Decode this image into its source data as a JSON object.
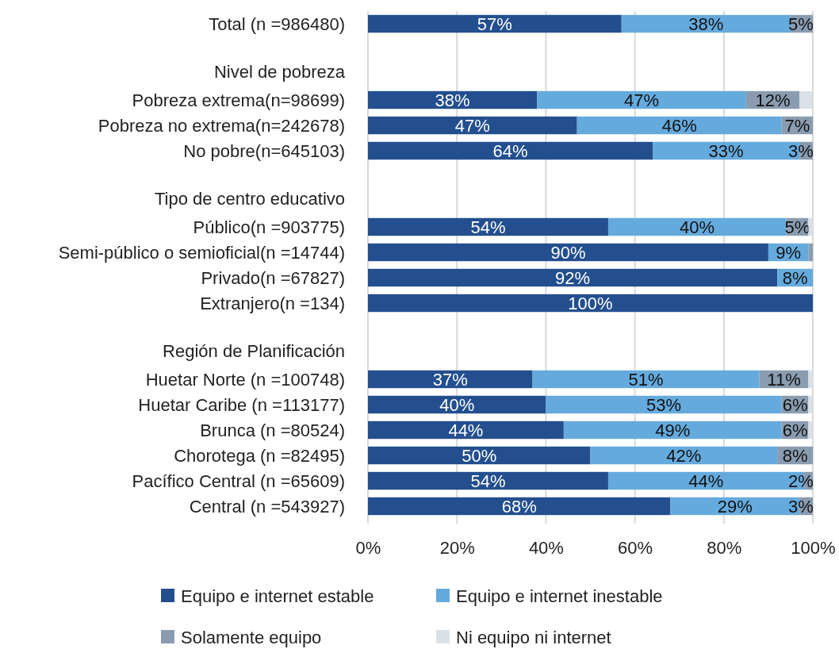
{
  "chart_data": {
    "type": "bar",
    "orientation": "horizontal",
    "stacked": true,
    "categories": [
      "Total (n =986480)",
      null,
      "Nivel de pobreza",
      "Pobreza extrema(n=98699)",
      "Pobreza no extrema(n=242678)",
      "No pobre(n=645103)",
      null,
      "Tipo de centro educativo",
      "Público(n =903775)",
      "Semi-público o semioficial(n =14744)",
      "Privado(n =67827)",
      "Extranjero(n =134)",
      null,
      "Región de Planificación",
      "Huetar Norte (n =100748)",
      "Huetar Caribe (n =113177)",
      "Brunca (n =80524)",
      "Chorotega (n =82495)",
      "Pacífico Central (n =65609)",
      "Central (n =543927)"
    ],
    "series": [
      {
        "name": "Equipo e internet estable",
        "color": "#234f8f",
        "values": [
          57,
          null,
          null,
          38,
          47,
          64,
          null,
          null,
          54,
          90,
          92,
          100,
          null,
          null,
          37,
          40,
          44,
          50,
          54,
          68
        ],
        "value_labels": [
          "57%",
          null,
          null,
          "38%",
          "47%",
          "64%",
          null,
          null,
          "54%",
          "90%",
          "92%",
          "100%",
          null,
          null,
          "37%",
          "40%",
          "44%",
          "50%",
          "54%",
          "68%"
        ]
      },
      {
        "name": "Equipo e internet inestable",
        "color": "#65aadd",
        "values": [
          38,
          null,
          null,
          47,
          46,
          33,
          null,
          null,
          40,
          9,
          8,
          null,
          null,
          null,
          51,
          53,
          49,
          42,
          44,
          29
        ],
        "value_labels": [
          "38%",
          null,
          null,
          "47%",
          "46%",
          "33%",
          null,
          null,
          "40%",
          "9%",
          "8%",
          null,
          null,
          null,
          "51%",
          "53%",
          "49%",
          "42%",
          "44%",
          "29%"
        ]
      },
      {
        "name": "Solamente equipo",
        "color": "#8a9cb0",
        "values": [
          5,
          null,
          null,
          12,
          7,
          3,
          null,
          null,
          5,
          1,
          null,
          null,
          null,
          null,
          11,
          6,
          6,
          8,
          2,
          3
        ],
        "value_labels": [
          "5%",
          null,
          null,
          "12%",
          "7%",
          "3%",
          null,
          null,
          "5%",
          null,
          null,
          null,
          null,
          null,
          "11%",
          "6%",
          "6%",
          "8%",
          "2%",
          "3%"
        ]
      },
      {
        "name": "Ni equipo ni internet",
        "color": "#d9e1e6",
        "values": [
          null,
          null,
          null,
          3,
          null,
          null,
          null,
          null,
          1,
          null,
          null,
          null,
          null,
          null,
          1,
          1,
          1,
          null,
          null,
          null
        ]
      }
    ],
    "xlim": [
      0,
      100
    ],
    "xticks": [
      {
        "value": 0,
        "label": "0%"
      },
      {
        "value": 20,
        "label": "20%"
      },
      {
        "value": 40,
        "label": "40%"
      },
      {
        "value": 60,
        "label": "60%"
      },
      {
        "value": 80,
        "label": "80%"
      },
      {
        "value": 100,
        "label": "100%"
      }
    ],
    "grid": "x",
    "legend": "bottom"
  }
}
